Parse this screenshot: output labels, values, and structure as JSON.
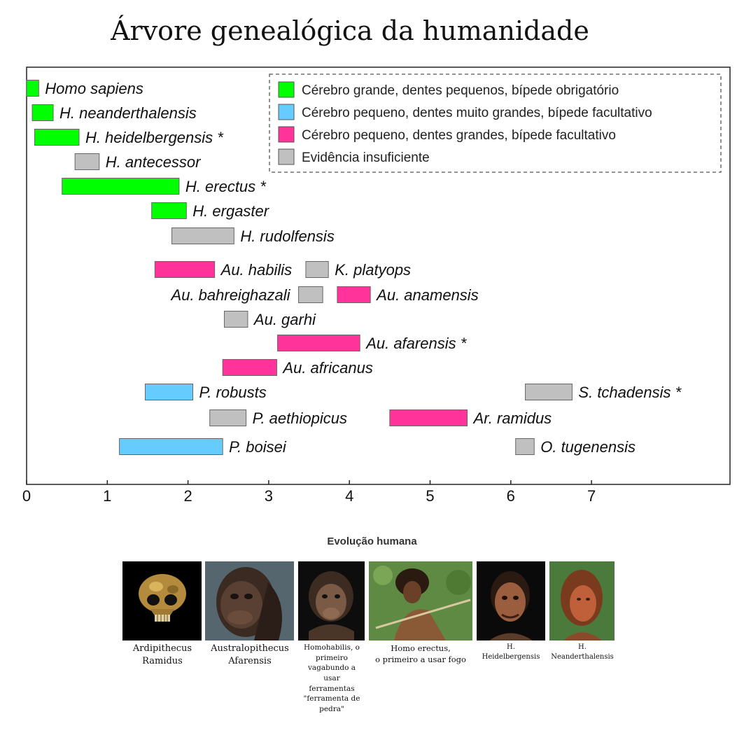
{
  "title": "Árvore genealógica da humanidade",
  "colors": {
    "green": "#00ff00",
    "blue": "#66ccff",
    "pink": "#ff3399",
    "gray": "#c0c0c0"
  },
  "chart_data": {
    "type": "bar",
    "orientation": "horizontal-range",
    "xlim": [
      0,
      8.7
    ],
    "xticks": [
      0,
      1,
      2,
      3,
      4,
      5,
      6,
      7
    ],
    "grid": false,
    "legend_position": "top-right",
    "legend": [
      {
        "category": "green",
        "label": "Cérebro grande, dentes pequenos, bípede obrigatório"
      },
      {
        "category": "blue",
        "label": "Cérebro pequeno, dentes muito grandes, bípede facultativo"
      },
      {
        "category": "pink",
        "label": "Cérebro pequeno, dentes grandes, bípede facultativo"
      },
      {
        "category": "gray",
        "label": "Evidência insuficiente"
      }
    ],
    "bars": [
      {
        "name": "Homo sapiens",
        "start": 0.0,
        "end": 0.15,
        "category": "green",
        "label_side": "right"
      },
      {
        "name": "H. neanderthalensis",
        "start": 0.07,
        "end": 0.33,
        "category": "green",
        "label_side": "right"
      },
      {
        "name": "H. heidelbergensis *",
        "start": 0.1,
        "end": 0.65,
        "category": "green",
        "label_side": "right"
      },
      {
        "name": "H. antecessor",
        "start": 0.6,
        "end": 0.9,
        "category": "gray",
        "label_side": "right"
      },
      {
        "name": "H. erectus *",
        "start": 0.44,
        "end": 1.89,
        "category": "green",
        "label_side": "right"
      },
      {
        "name": "H. ergaster",
        "start": 1.55,
        "end": 1.98,
        "category": "green",
        "label_side": "right"
      },
      {
        "name": "H. rudolfensis",
        "start": 1.8,
        "end": 2.57,
        "category": "gray",
        "label_side": "right"
      },
      {
        "name": "Au. habilis",
        "start": 1.59,
        "end": 2.33,
        "category": "pink",
        "label_side": "right"
      },
      {
        "name": "K. platyops",
        "start": 3.46,
        "end": 3.74,
        "category": "gray",
        "label_side": "right"
      },
      {
        "name": "Au. bahreighazali",
        "start": 3.37,
        "end": 3.67,
        "category": "gray",
        "label_side": "left"
      },
      {
        "name": "Au. anamensis",
        "start": 3.85,
        "end": 4.26,
        "category": "pink",
        "label_side": "right"
      },
      {
        "name": "Au. garhi",
        "start": 2.45,
        "end": 2.74,
        "category": "gray",
        "label_side": "right"
      },
      {
        "name": "Au. afarensis *",
        "start": 3.11,
        "end": 4.13,
        "category": "pink",
        "label_side": "right"
      },
      {
        "name": "Au. africanus",
        "start": 2.43,
        "end": 3.1,
        "category": "pink",
        "label_side": "right"
      },
      {
        "name": "P. robusts",
        "start": 1.47,
        "end": 2.06,
        "category": "blue",
        "label_side": "right"
      },
      {
        "name": "S. tchadensis *",
        "start": 6.18,
        "end": 6.76,
        "category": "gray",
        "label_side": "right"
      },
      {
        "name": "P. aethiopicus",
        "start": 2.27,
        "end": 2.72,
        "category": "gray",
        "label_side": "right"
      },
      {
        "name": "Ar. ramidus",
        "start": 4.5,
        "end": 5.46,
        "category": "pink",
        "label_side": "right"
      },
      {
        "name": "P. boisei",
        "start": 1.15,
        "end": 2.43,
        "category": "blue",
        "label_side": "right"
      },
      {
        "name": "O. tugenensis",
        "start": 6.06,
        "end": 6.29,
        "category": "gray",
        "label_side": "right"
      }
    ]
  },
  "gallery": {
    "title": "Evolução humana",
    "items": [
      {
        "caption_lines": [
          "Ardipithecus",
          "Ramidus"
        ]
      },
      {
        "caption_lines": [
          "Australopithecus",
          "Afarensis"
        ]
      },
      {
        "caption_lines": [
          "Homohabilis, o",
          "primeiro",
          "vagabundo a",
          "usar",
          "ferramentas",
          "\"ferramenta de",
          "pedra\""
        ]
      },
      {
        "caption_lines": [
          "Homo erectus,",
          "o primeiro a usar fogo"
        ]
      },
      {
        "caption_lines": [
          "H.",
          "Heidelbergensis"
        ]
      },
      {
        "caption_lines": [
          "H.",
          "Neanderthalensis"
        ]
      }
    ]
  }
}
